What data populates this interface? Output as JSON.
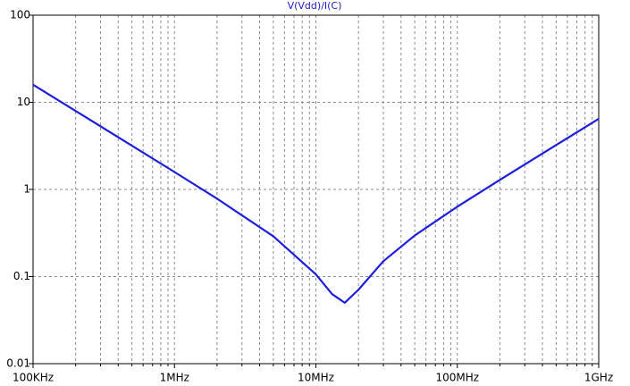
{
  "chart_data": {
    "type": "line",
    "title": "V(Vdd)/I(C)",
    "title_color": "#1a1ac8",
    "x_log": true,
    "y_log": true,
    "grid": true,
    "x": [
      100000,
      200000,
      500000,
      1000000,
      2000000,
      5000000,
      10000000,
      13000000,
      16000000,
      20000000,
      30000000,
      50000000,
      100000000,
      200000000,
      500000000,
      1000000000
    ],
    "series": [
      {
        "name": "V(Vdd)/I(C)",
        "color": "#1e1edc",
        "values": [
          15.91,
          7.96,
          3.18,
          1.585,
          0.783,
          0.29,
          0.106,
          0.063,
          0.05,
          0.0706,
          0.15,
          0.296,
          0.633,
          1.286,
          3.23,
          6.47
        ]
      }
    ],
    "xlim": [
      100000,
      1000000000
    ],
    "ylim": [
      0.01,
      100
    ],
    "xticks": [
      {
        "value": 100000,
        "label": "100KHz"
      },
      {
        "value": 1000000,
        "label": "1MHz"
      },
      {
        "value": 10000000,
        "label": "10MHz"
      },
      {
        "value": 100000000,
        "label": "100MHz"
      },
      {
        "value": 1000000000,
        "label": "1GHz"
      }
    ],
    "xminorticks": [
      200000,
      300000,
      400000,
      500000,
      600000,
      700000,
      800000,
      900000,
      2000000,
      3000000,
      4000000,
      5000000,
      6000000,
      7000000,
      8000000,
      9000000,
      20000000,
      30000000,
      40000000,
      50000000,
      60000000,
      70000000,
      80000000,
      90000000,
      200000000,
      300000000,
      400000000,
      500000000,
      600000000,
      700000000,
      800000000,
      900000000
    ],
    "yticks": [
      0.01,
      0.1,
      1,
      10,
      100
    ]
  }
}
